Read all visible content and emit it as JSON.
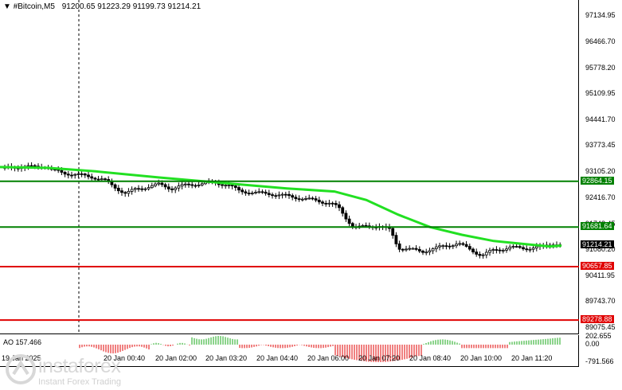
{
  "header": {
    "symbol": "#Bitcoin,M5",
    "quote": "91200.65 91223.29 91199.73 91214.21"
  },
  "price_axis": {
    "labels": [
      "97134.95",
      "96466.70",
      "95778.20",
      "95109.95",
      "94441.70",
      "93773.45",
      "93105.20",
      "92416.70",
      "91748.45",
      "91080.20",
      "90411.95",
      "89743.70",
      "89075.45"
    ],
    "levels": [
      {
        "value": "92864.15",
        "color": "#008000"
      },
      {
        "value": "91681.64",
        "color": "#008000"
      },
      {
        "value": "91214.21",
        "color": "#000000"
      },
      {
        "value": "90657.85",
        "color": "#e00000"
      },
      {
        "value": "89278.88",
        "color": "#e00000"
      }
    ]
  },
  "ao": {
    "label": "AO 157.466",
    "axis_labels": [
      "202.655",
      "0.00",
      "-791.566"
    ]
  },
  "time_axis": {
    "labels": [
      "19 Jan 2025",
      "20 Jan 00:40",
      "20 Jan 02:00",
      "20 Jan 03:20",
      "20 Jan 04:40",
      "20 Jan 06:00",
      "20 Jan 07:20",
      "20 Jan 08:40",
      "20 Jan 10:00",
      "20 Jan 11:20"
    ]
  },
  "watermark": {
    "brand": "instaforex",
    "tagline": "Instant Forex Trading"
  },
  "colors": {
    "ma_line": "#22e022",
    "support": "#e00000",
    "resistance": "#008000",
    "candle": "#000000",
    "ao_up": "#1aa81a",
    "ao_down": "#e00000"
  }
}
